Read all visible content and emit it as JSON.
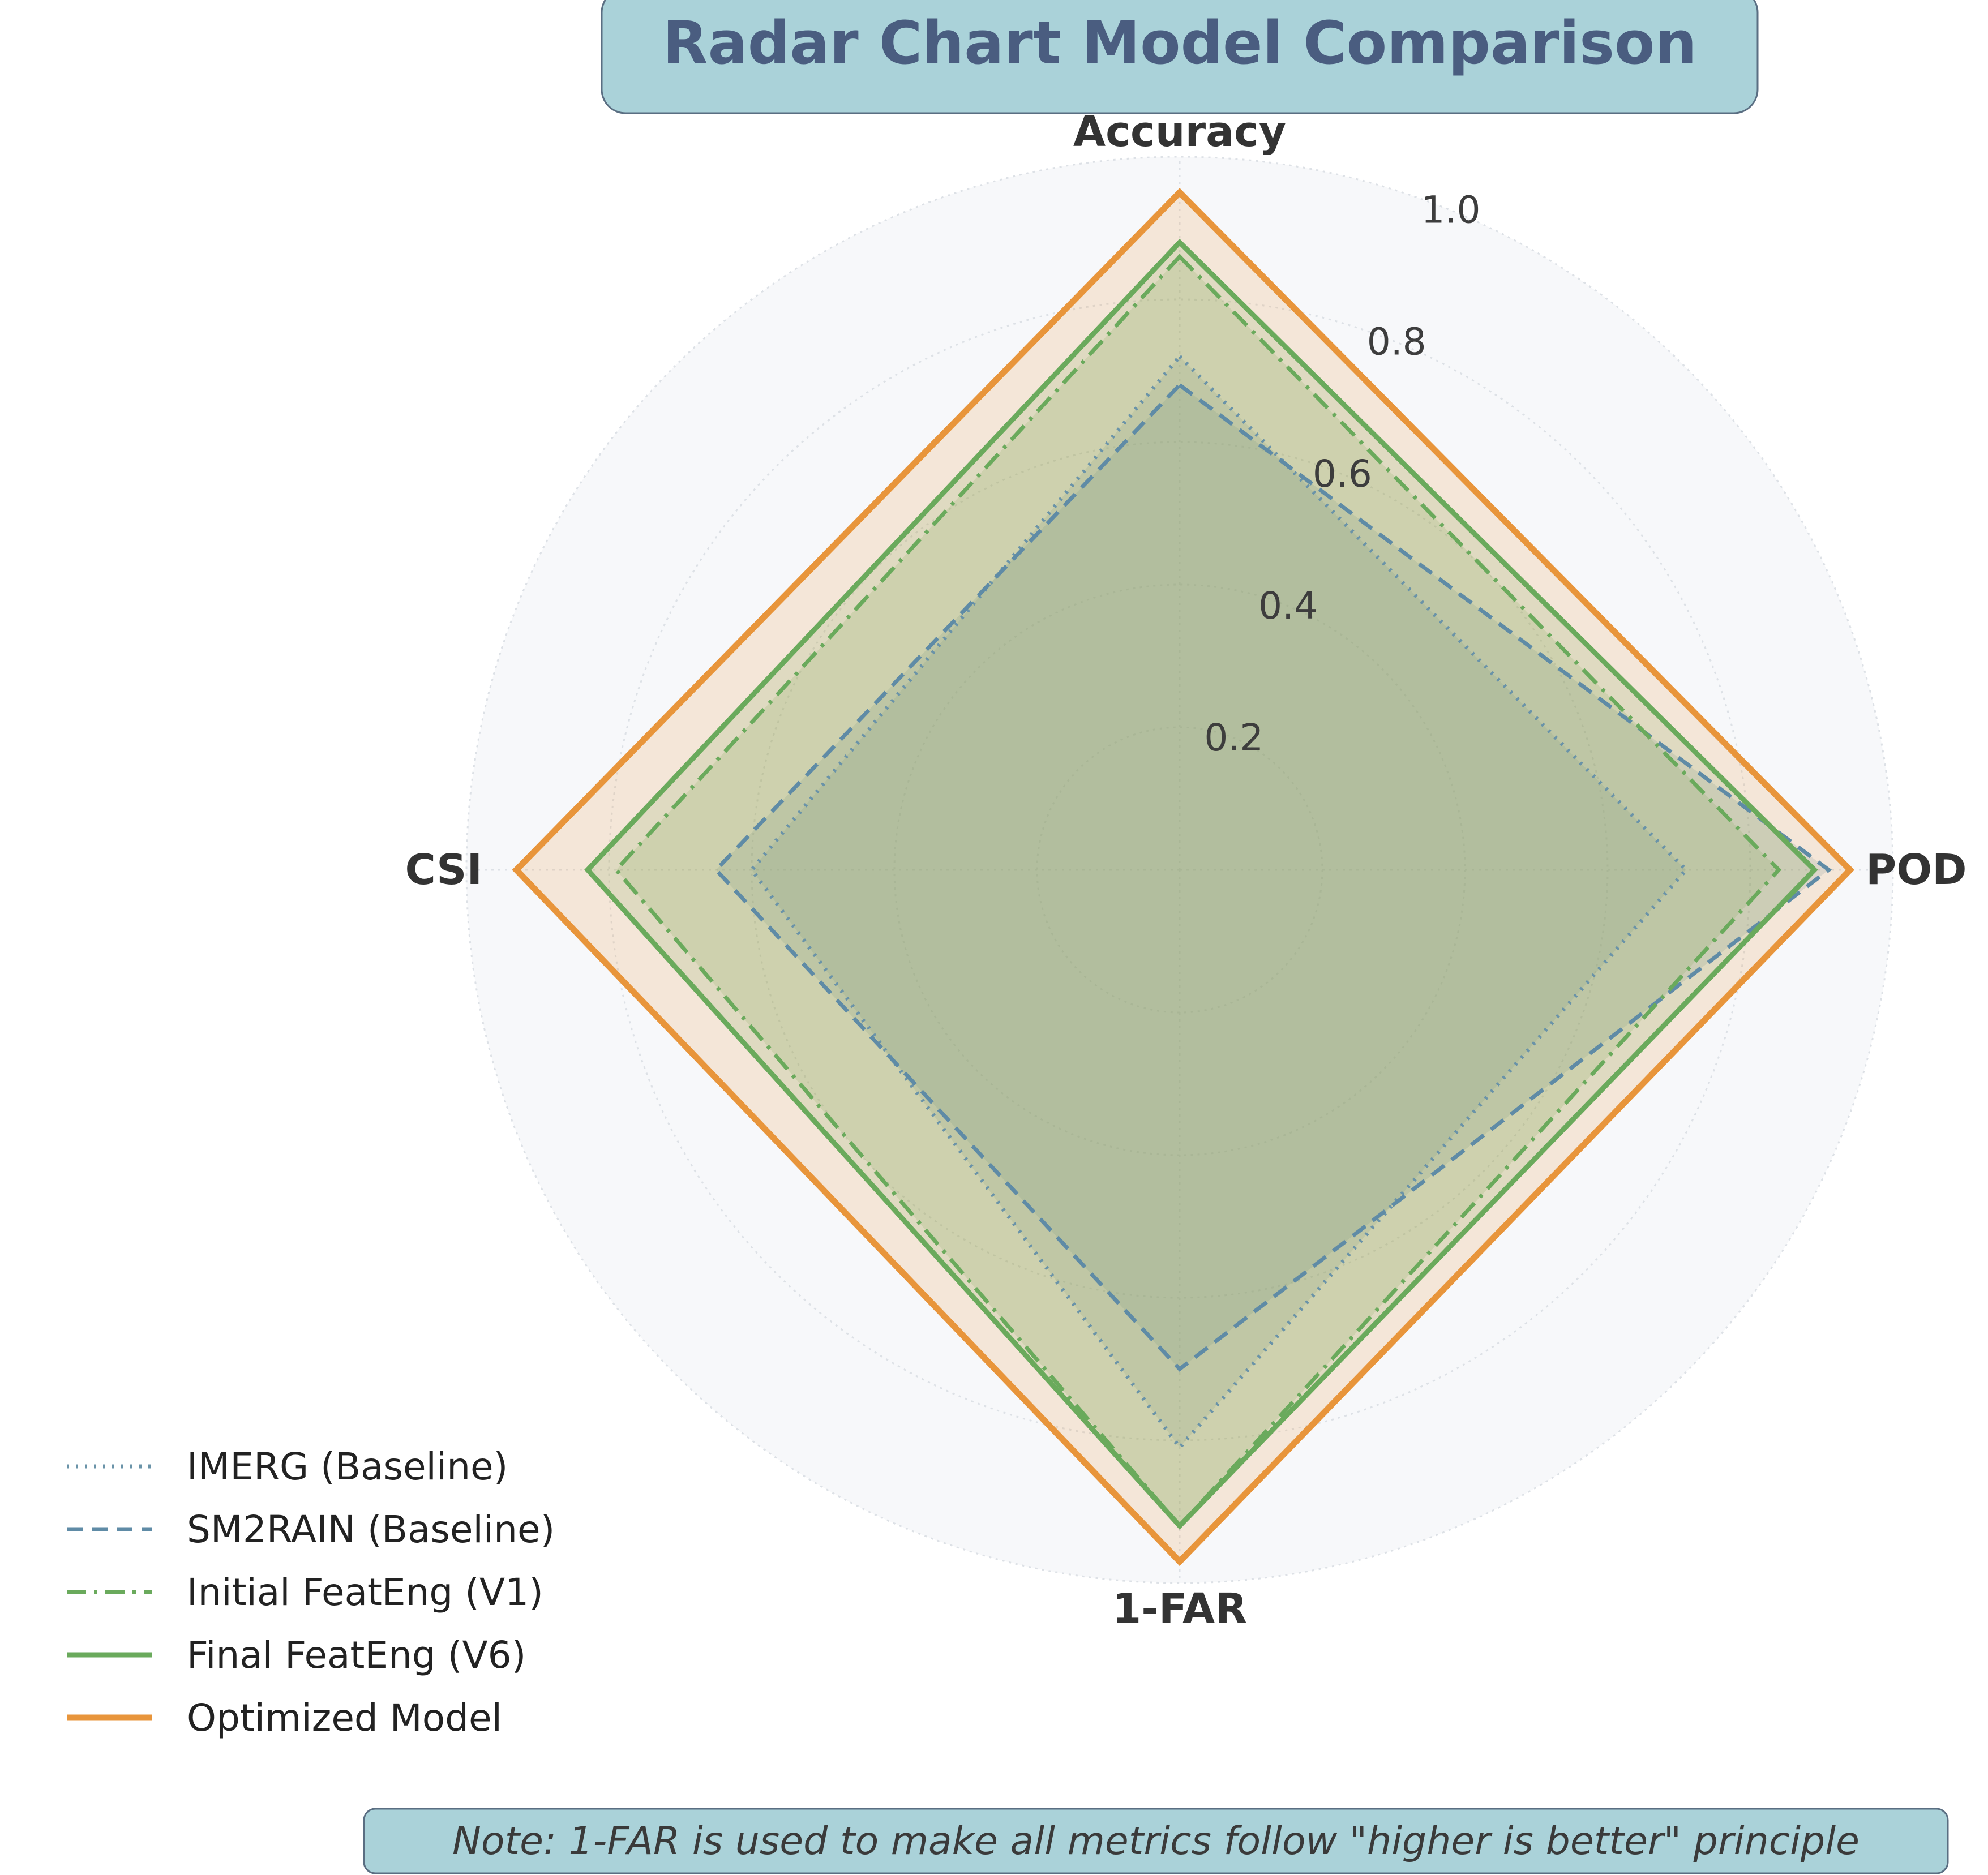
{
  "chart_data": {
    "type": "radar",
    "title": "Radar Chart Model Comparison",
    "axes": [
      "Accuracy",
      "POD",
      "1-FAR",
      "CSI"
    ],
    "rlim": [
      0,
      1.0
    ],
    "ticks": [
      "0.2",
      "0.4",
      "0.6",
      "0.8",
      "1.0"
    ],
    "tick_values": [
      0.2,
      0.4,
      0.6,
      0.8,
      1.0
    ],
    "series": [
      {
        "name": "IMERG (Baseline)",
        "values": [
          0.72,
          0.71,
          0.81,
          0.6
        ],
        "color": "#6a93a8",
        "style": "dotted"
      },
      {
        "name": "SM2RAIN (Baseline)",
        "values": [
          0.68,
          0.91,
          0.7,
          0.65
        ],
        "color": "#5f8ba6",
        "style": "dashed"
      },
      {
        "name": "Initial FeatEng (V1)",
        "values": [
          0.86,
          0.84,
          0.92,
          0.79
        ],
        "color": "#6aaa5c",
        "style": "dashdot"
      },
      {
        "name": "Final FeatEng (V6)",
        "values": [
          0.88,
          0.89,
          0.92,
          0.83
        ],
        "color": "#6aaa5c",
        "style": "solid"
      },
      {
        "name": "Optimized Model",
        "values": [
          0.95,
          0.94,
          0.97,
          0.93
        ],
        "color": "#e8953b",
        "style": "solid"
      }
    ],
    "legend_position": "bottom-left",
    "grid": true,
    "note": "Note: 1-FAR is used to make all metrics follow \"higher is better\" principle"
  }
}
